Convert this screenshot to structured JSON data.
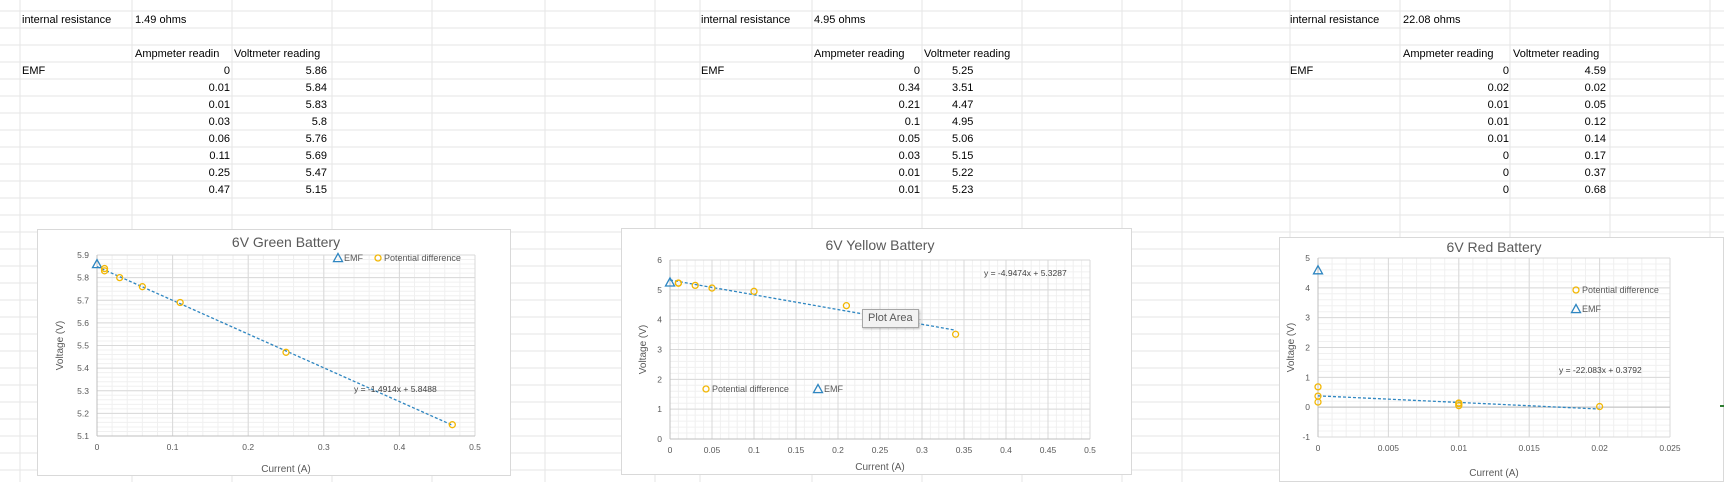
{
  "tables": [
    {
      "resistance_label": "internal resistance",
      "resistance_value": "1.49 ohms",
      "col_ammeter": "Ampmeter readin",
      "col_voltmeter": "Voltmeter reading",
      "emf_label": "EMF",
      "rows": [
        {
          "a": "0",
          "v": "5.86"
        },
        {
          "a": "0.01",
          "v": "5.84"
        },
        {
          "a": "0.01",
          "v": "5.83"
        },
        {
          "a": "0.03",
          "v": "5.8"
        },
        {
          "a": "0.06",
          "v": "5.76"
        },
        {
          "a": "0.11",
          "v": "5.69"
        },
        {
          "a": "0.25",
          "v": "5.47"
        },
        {
          "a": "0.47",
          "v": "5.15"
        }
      ]
    },
    {
      "resistance_label": "internal resistance",
      "resistance_value": "4.95 ohms",
      "col_ammeter": "Ampmeter reading",
      "col_voltmeter": "Voltmeter reading",
      "emf_label": "EMF",
      "rows": [
        {
          "a": "0",
          "v": "5.25"
        },
        {
          "a": "0.34",
          "v": "3.51"
        },
        {
          "a": "0.21",
          "v": "4.47"
        },
        {
          "a": "0.1",
          "v": "4.95"
        },
        {
          "a": "0.05",
          "v": "5.06"
        },
        {
          "a": "0.03",
          "v": "5.15"
        },
        {
          "a": "0.01",
          "v": "5.22"
        },
        {
          "a": "0.01",
          "v": "5.23"
        }
      ]
    },
    {
      "resistance_label": "internal resistance",
      "resistance_value": "22.08 ohms",
      "col_ammeter": "Ampmeter reading",
      "col_voltmeter": "Voltmeter reading",
      "emf_label": "EMF",
      "rows": [
        {
          "a": "0",
          "v": "4.59"
        },
        {
          "a": "0.02",
          "v": "0.02"
        },
        {
          "a": "0.01",
          "v": "0.05"
        },
        {
          "a": "0.01",
          "v": "0.12"
        },
        {
          "a": "0.01",
          "v": "0.14"
        },
        {
          "a": "0",
          "v": "0.17"
        },
        {
          "a": "0",
          "v": "0.37"
        },
        {
          "a": "0",
          "v": "0.68"
        }
      ]
    }
  ],
  "tooltip": "Plot Area",
  "chart_data": [
    {
      "type": "scatter",
      "title": "6V Green Battery",
      "xlabel": "Current (A)",
      "ylabel": "Voltage (V)",
      "xlim": [
        0,
        0.5
      ],
      "ylim": [
        5.1,
        5.9
      ],
      "xticks": [
        0,
        0.1,
        0.2,
        0.3,
        0.4,
        0.5
      ],
      "xtick_labels": [
        "0",
        "0.1",
        "0.2",
        "0.3",
        "0.4",
        "0.5"
      ],
      "yticks": [
        5.1,
        5.2,
        5.3,
        5.4,
        5.5,
        5.6,
        5.7,
        5.8,
        5.9
      ],
      "ytick_labels": [
        "5.1",
        "5.2",
        "5.3",
        "5.4",
        "5.5",
        "5.6",
        "5.7",
        "5.8",
        "5.9"
      ],
      "series": [
        {
          "name": "EMF",
          "marker": "triangle",
          "color": "#2e86c1",
          "x": [
            0
          ],
          "y": [
            5.86
          ]
        },
        {
          "name": "Potential difference",
          "marker": "circle",
          "color": "#f2b705",
          "x": [
            0.01,
            0.01,
            0.03,
            0.06,
            0.11,
            0.25,
            0.47
          ],
          "y": [
            5.84,
            5.83,
            5.8,
            5.76,
            5.69,
            5.47,
            5.15
          ]
        }
      ],
      "trendline": {
        "slope": -1.4914,
        "intercept": 5.8488,
        "x_range": [
          0,
          0.47
        ],
        "label": "y = -1.4914x + 5.8488",
        "color": "#2e86c1"
      },
      "legend_position": "top-right"
    },
    {
      "type": "scatter",
      "title": "6V Yellow Battery",
      "xlabel": "Current (A)",
      "ylabel": "Voltage (V)",
      "xlim": [
        0,
        0.5
      ],
      "ylim": [
        0,
        6
      ],
      "xticks": [
        0,
        0.05,
        0.1,
        0.15,
        0.2,
        0.25,
        0.3,
        0.35,
        0.4,
        0.45,
        0.5
      ],
      "xtick_labels": [
        "0",
        "0.05",
        "0.1",
        "0.15",
        "0.2",
        "0.25",
        "0.3",
        "0.35",
        "0.4",
        "0.45",
        "0.5"
      ],
      "yticks": [
        0,
        1,
        2,
        3,
        4,
        5,
        6
      ],
      "ytick_labels": [
        "0",
        "1",
        "2",
        "3",
        "4",
        "5",
        "6"
      ],
      "series": [
        {
          "name": "EMF",
          "marker": "triangle",
          "color": "#2e86c1",
          "x": [
            0
          ],
          "y": [
            5.25
          ]
        },
        {
          "name": "Potential difference",
          "marker": "circle",
          "color": "#f2b705",
          "x": [
            0.34,
            0.21,
            0.1,
            0.05,
            0.03,
            0.01,
            0.01
          ],
          "y": [
            3.51,
            4.47,
            4.95,
            5.06,
            5.15,
            5.22,
            5.23
          ]
        }
      ],
      "trendline": {
        "slope": -4.9474,
        "intercept": 5.3287,
        "x_range": [
          0,
          0.34
        ],
        "label": "y = -4.9474x + 5.3287",
        "color": "#2e86c1"
      },
      "legend_position": "bottom-left"
    },
    {
      "type": "scatter",
      "title": "6V Red Battery",
      "xlabel": "Current (A)",
      "ylabel": "Voltage (V)",
      "xlim": [
        0,
        0.025
      ],
      "ylim": [
        -1,
        5
      ],
      "xticks": [
        0,
        0.005,
        0.01,
        0.015,
        0.02,
        0.025
      ],
      "xtick_labels": [
        "0",
        "0.005",
        "0.01",
        "0.015",
        "0.02",
        "0.025"
      ],
      "yticks": [
        -1,
        0,
        1,
        2,
        3,
        4,
        5
      ],
      "ytick_labels": [
        "-1",
        "0",
        "1",
        "2",
        "3",
        "4",
        "5"
      ],
      "series": [
        {
          "name": "Potential difference",
          "marker": "circle",
          "color": "#f2b705",
          "x": [
            0.02,
            0.01,
            0.01,
            0.01,
            0,
            0,
            0
          ],
          "y": [
            0.02,
            0.05,
            0.12,
            0.14,
            0.17,
            0.37,
            0.68
          ]
        },
        {
          "name": "EMF",
          "marker": "triangle",
          "color": "#2e86c1",
          "x": [
            0
          ],
          "y": [
            4.59
          ]
        }
      ],
      "trendline": {
        "slope": -22.083,
        "intercept": 0.3792,
        "x_range": [
          0,
          0.02
        ],
        "label": "y = -22.083x + 0.3792",
        "color": "#2e86c1"
      },
      "legend_position": "right"
    }
  ]
}
